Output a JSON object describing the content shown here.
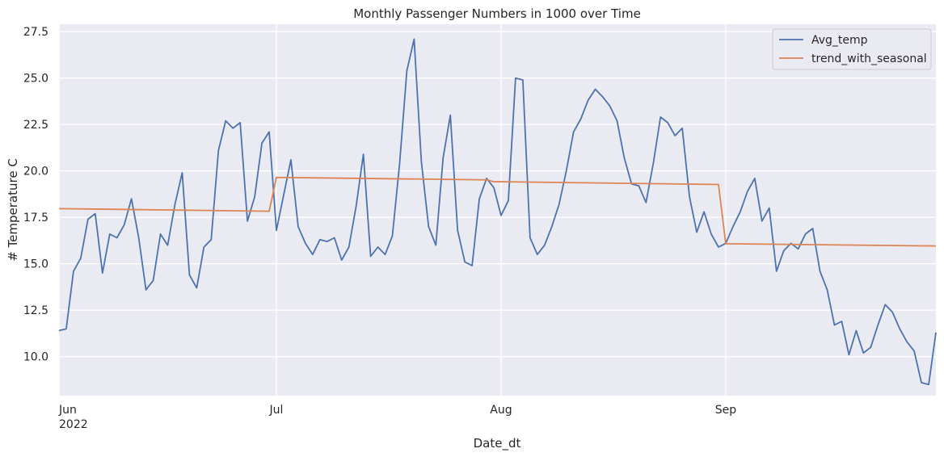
{
  "chart_data": {
    "type": "line",
    "title": "Monthly Passenger Numbers in 1000 over Time",
    "xlabel": "Date_dt",
    "ylabel": "# Temperature C",
    "x_start": "2022-06-01",
    "x_end": "2022-09-30",
    "xlim": [
      "2022-06-01",
      "2022-09-30"
    ],
    "ylim": [
      7.9,
      27.9
    ],
    "y_ticks": [
      10.0,
      12.5,
      15.0,
      17.5,
      20.0,
      22.5,
      25.0,
      27.5
    ],
    "y_tick_labels": [
      "10.0",
      "12.5",
      "15.0",
      "17.5",
      "20.0",
      "22.5",
      "25.0",
      "27.5"
    ],
    "x_ticks": [
      {
        "date": "2022-06-01",
        "label": "Jun",
        "sublabel": "2022"
      },
      {
        "date": "2022-07-01",
        "label": "Jul",
        "sublabel": ""
      },
      {
        "date": "2022-08-01",
        "label": "Aug",
        "sublabel": ""
      },
      {
        "date": "2022-09-01",
        "label": "Sep",
        "sublabel": ""
      }
    ],
    "grid": true,
    "legend_position": "top-right",
    "series": [
      {
        "name": "Avg_temp",
        "color": "#4c72b0",
        "x_dates": [
          "2022-06-01",
          "2022-06-02",
          "2022-06-03",
          "2022-06-04",
          "2022-06-05",
          "2022-06-06",
          "2022-06-07",
          "2022-06-08",
          "2022-06-09",
          "2022-06-10",
          "2022-06-11",
          "2022-06-12",
          "2022-06-13",
          "2022-06-14",
          "2022-06-15",
          "2022-06-16",
          "2022-06-17",
          "2022-06-18",
          "2022-06-19",
          "2022-06-20",
          "2022-06-21",
          "2022-06-22",
          "2022-06-23",
          "2022-06-24",
          "2022-06-25",
          "2022-06-26",
          "2022-06-27",
          "2022-06-28",
          "2022-06-29",
          "2022-06-30",
          "2022-07-01",
          "2022-07-02",
          "2022-07-03",
          "2022-07-04",
          "2022-07-05",
          "2022-07-06",
          "2022-07-07",
          "2022-07-08",
          "2022-07-09",
          "2022-07-10",
          "2022-07-11",
          "2022-07-12",
          "2022-07-13",
          "2022-07-14",
          "2022-07-15",
          "2022-07-16",
          "2022-07-17",
          "2022-07-18",
          "2022-07-19",
          "2022-07-20",
          "2022-07-21",
          "2022-07-22",
          "2022-07-23",
          "2022-07-24",
          "2022-07-25",
          "2022-07-26",
          "2022-07-27",
          "2022-07-28",
          "2022-07-29",
          "2022-07-30",
          "2022-07-31",
          "2022-08-01",
          "2022-08-02",
          "2022-08-03",
          "2022-08-04",
          "2022-08-05",
          "2022-08-06",
          "2022-08-07",
          "2022-08-08",
          "2022-08-09",
          "2022-08-10",
          "2022-08-11",
          "2022-08-12",
          "2022-08-13",
          "2022-08-14",
          "2022-08-15",
          "2022-08-16",
          "2022-08-17",
          "2022-08-18",
          "2022-08-19",
          "2022-08-20",
          "2022-08-21",
          "2022-08-22",
          "2022-08-23",
          "2022-08-24",
          "2022-08-25",
          "2022-08-26",
          "2022-08-27",
          "2022-08-28",
          "2022-08-29",
          "2022-08-30",
          "2022-08-31",
          "2022-09-01",
          "2022-09-02",
          "2022-09-03",
          "2022-09-04",
          "2022-09-05",
          "2022-09-06",
          "2022-09-07",
          "2022-09-08",
          "2022-09-09",
          "2022-09-10",
          "2022-09-11",
          "2022-09-12",
          "2022-09-13",
          "2022-09-14",
          "2022-09-15",
          "2022-09-16",
          "2022-09-17",
          "2022-09-18",
          "2022-09-19",
          "2022-09-20",
          "2022-09-21",
          "2022-09-22",
          "2022-09-23",
          "2022-09-24",
          "2022-09-25",
          "2022-09-26",
          "2022-09-27",
          "2022-09-28",
          "2022-09-29",
          "2022-09-30"
        ],
        "values": [
          11.4,
          11.5,
          14.6,
          15.3,
          17.4,
          17.7,
          14.5,
          16.6,
          16.4,
          17.1,
          18.5,
          16.4,
          13.6,
          14.1,
          16.6,
          16.0,
          18.2,
          19.9,
          14.4,
          13.7,
          15.9,
          16.3,
          21.1,
          22.7,
          22.3,
          22.6,
          17.3,
          18.6,
          21.5,
          22.1,
          16.8,
          18.7,
          20.6,
          17.0,
          16.1,
          15.5,
          16.3,
          16.2,
          16.4,
          15.2,
          15.9,
          18.1,
          20.9,
          15.4,
          15.9,
          15.5,
          16.5,
          20.4,
          25.4,
          27.1,
          20.5,
          17.0,
          16.0,
          20.7,
          23.0,
          16.8,
          15.1,
          14.9,
          18.5,
          19.6,
          19.1,
          17.6,
          18.4,
          25.0,
          24.9,
          16.4,
          15.5,
          16.0,
          17.0,
          18.2,
          20.0,
          22.1,
          22.8,
          23.8,
          24.4,
          24.0,
          23.5,
          22.7,
          20.7,
          19.3,
          19.2,
          18.3,
          20.4,
          22.9,
          22.6,
          21.9,
          22.3,
          18.6,
          16.7,
          17.8,
          16.6,
          15.9,
          16.1,
          17.0,
          17.8,
          18.9,
          19.6,
          17.3,
          18.0,
          14.6,
          15.7,
          16.1,
          15.8,
          16.6,
          16.9,
          14.6,
          13.6,
          11.7,
          11.9,
          10.1,
          11.4,
          10.2,
          10.5,
          11.7,
          12.8,
          12.4,
          11.5,
          10.8,
          10.3,
          8.6,
          8.5,
          11.3
        ]
      },
      {
        "name": "trend_with_seasonal",
        "color": "#dd8452",
        "segments": [
          {
            "x_dates": [
              "2022-06-01",
              "2022-06-30"
            ],
            "values": [
              17.97,
              17.83
            ]
          },
          {
            "x_dates": [
              "2022-07-01",
              "2022-07-30",
              "2022-07-31"
            ],
            "values": [
              19.65,
              19.52,
              19.42
            ]
          },
          {
            "x_dates": [
              "2022-08-01",
              "2022-08-31"
            ],
            "values": [
              19.42,
              19.27
            ]
          },
          {
            "x_dates": [
              "2022-09-01",
              "2022-09-30"
            ],
            "values": [
              16.08,
              15.96
            ]
          }
        ]
      }
    ]
  }
}
